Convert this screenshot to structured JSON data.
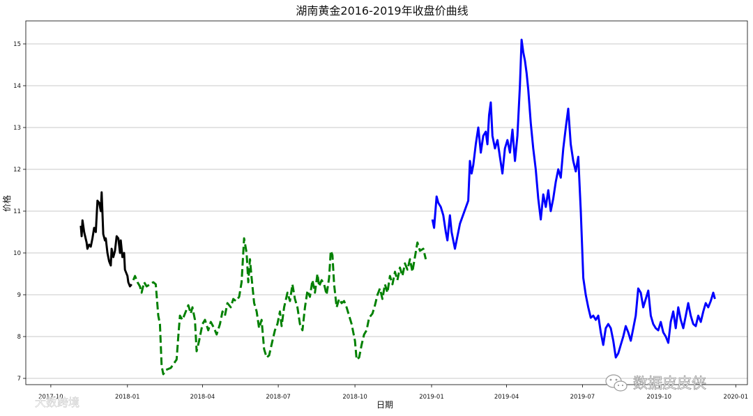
{
  "chart_data": {
    "type": "line",
    "title": "湖南黄金2016-2019年收盘价曲线",
    "xlabel": "日期",
    "ylabel": "价格",
    "ylim": [
      6.85,
      15.55
    ],
    "xlim": [
      "2017-09-01",
      "2020-01-15"
    ],
    "grid": "horizontal",
    "y_ticks": [
      7,
      8,
      9,
      10,
      11,
      12,
      13,
      14,
      15
    ],
    "x_ticks": [
      {
        "date": "2017-10-01",
        "label": "2017-10"
      },
      {
        "date": "2018-01-01",
        "label": "2018-01"
      },
      {
        "date": "2018-04-01",
        "label": "2018-04"
      },
      {
        "date": "2018-07-01",
        "label": "2018-07"
      },
      {
        "date": "2018-10-01",
        "label": "2018-10"
      },
      {
        "date": "2019-01-01",
        "label": "2019-01"
      },
      {
        "date": "2019-04-01",
        "label": "2019-04"
      },
      {
        "date": "2019-07-01",
        "label": "2019-07"
      },
      {
        "date": "2019-10-01",
        "label": "2019-10"
      },
      {
        "date": "2020-01-01",
        "label": "2020-01"
      }
    ],
    "series": [
      {
        "color": "#000000",
        "dash": "solid",
        "points": [
          [
            "2017-11-06",
            10.65
          ],
          [
            "2017-11-07",
            10.4
          ],
          [
            "2017-11-08",
            10.78
          ],
          [
            "2017-11-10",
            10.5
          ],
          [
            "2017-11-13",
            10.25
          ],
          [
            "2017-11-14",
            10.1
          ],
          [
            "2017-11-16",
            10.2
          ],
          [
            "2017-11-18",
            10.15
          ],
          [
            "2017-11-20",
            10.35
          ],
          [
            "2017-11-22",
            10.6
          ],
          [
            "2017-11-24",
            10.5
          ],
          [
            "2017-11-26",
            11.25
          ],
          [
            "2017-11-28",
            11.2
          ],
          [
            "2017-11-30",
            11.0
          ],
          [
            "2017-12-01",
            11.45
          ],
          [
            "2017-12-03",
            10.45
          ],
          [
            "2017-12-05",
            10.3
          ],
          [
            "2017-12-06",
            10.35
          ],
          [
            "2017-12-08",
            10.0
          ],
          [
            "2017-12-10",
            9.8
          ],
          [
            "2017-12-12",
            9.7
          ],
          [
            "2017-12-13",
            10.1
          ],
          [
            "2017-12-15",
            9.9
          ],
          [
            "2017-12-17",
            10.05
          ],
          [
            "2017-12-19",
            10.4
          ],
          [
            "2017-12-21",
            10.35
          ],
          [
            "2017-12-23",
            10.0
          ],
          [
            "2017-12-24",
            10.3
          ],
          [
            "2017-12-26",
            9.9
          ],
          [
            "2017-12-28",
            10.0
          ],
          [
            "2017-12-29",
            9.6
          ],
          [
            "2018-01-01",
            9.45
          ],
          [
            "2018-01-02",
            9.3
          ],
          [
            "2018-01-04",
            9.2
          ],
          [
            "2018-01-06",
            9.25
          ]
        ]
      },
      {
        "color": "#008000",
        "dash": "dashed",
        "points": [
          [
            "2018-01-08",
            9.35
          ],
          [
            "2018-01-10",
            9.45
          ],
          [
            "2018-01-13",
            9.3
          ],
          [
            "2018-01-16",
            9.2
          ],
          [
            "2018-01-18",
            9.05
          ],
          [
            "2018-01-21",
            9.3
          ],
          [
            "2018-01-24",
            9.2
          ],
          [
            "2018-01-28",
            9.25
          ],
          [
            "2018-02-01",
            9.3
          ],
          [
            "2018-02-04",
            9.25
          ],
          [
            "2018-02-07",
            8.5
          ],
          [
            "2018-02-09",
            8.3
          ],
          [
            "2018-02-11",
            7.3
          ],
          [
            "2018-02-13",
            7.1
          ],
          [
            "2018-02-16",
            7.2
          ],
          [
            "2018-02-22",
            7.25
          ],
          [
            "2018-03-01",
            7.45
          ],
          [
            "2018-03-03",
            8.0
          ],
          [
            "2018-03-05",
            8.5
          ],
          [
            "2018-03-08",
            8.4
          ],
          [
            "2018-03-12",
            8.6
          ],
          [
            "2018-03-15",
            8.75
          ],
          [
            "2018-03-18",
            8.55
          ],
          [
            "2018-03-20",
            8.7
          ],
          [
            "2018-03-23",
            8.4
          ],
          [
            "2018-03-25",
            7.65
          ],
          [
            "2018-03-28",
            7.9
          ],
          [
            "2018-04-01",
            8.3
          ],
          [
            "2018-04-04",
            8.4
          ],
          [
            "2018-04-08",
            8.15
          ],
          [
            "2018-04-11",
            8.35
          ],
          [
            "2018-04-15",
            8.2
          ],
          [
            "2018-04-18",
            8.05
          ],
          [
            "2018-04-22",
            8.3
          ],
          [
            "2018-04-25",
            8.6
          ],
          [
            "2018-04-28",
            8.5
          ],
          [
            "2018-05-01",
            8.8
          ],
          [
            "2018-05-05",
            8.7
          ],
          [
            "2018-05-08",
            8.9
          ],
          [
            "2018-05-11",
            8.85
          ],
          [
            "2018-05-15",
            8.95
          ],
          [
            "2018-05-18",
            9.3
          ],
          [
            "2018-05-21",
            10.35
          ],
          [
            "2018-05-24",
            10.0
          ],
          [
            "2018-05-26",
            9.3
          ],
          [
            "2018-05-28",
            9.85
          ],
          [
            "2018-05-30",
            9.4
          ],
          [
            "2018-06-02",
            8.8
          ],
          [
            "2018-06-05",
            8.6
          ],
          [
            "2018-06-08",
            8.2
          ],
          [
            "2018-06-11",
            8.4
          ],
          [
            "2018-06-14",
            7.7
          ],
          [
            "2018-06-17",
            7.5
          ],
          [
            "2018-06-20",
            7.55
          ],
          [
            "2018-06-24",
            7.9
          ],
          [
            "2018-06-27",
            8.15
          ],
          [
            "2018-06-30",
            8.3
          ],
          [
            "2018-07-03",
            8.6
          ],
          [
            "2018-07-05",
            8.25
          ],
          [
            "2018-07-08",
            8.7
          ],
          [
            "2018-07-12",
            9.05
          ],
          [
            "2018-07-15",
            8.85
          ],
          [
            "2018-07-18",
            9.25
          ],
          [
            "2018-07-21",
            8.9
          ],
          [
            "2018-07-24",
            8.7
          ],
          [
            "2018-07-27",
            8.3
          ],
          [
            "2018-07-30",
            8.15
          ],
          [
            "2018-08-02",
            8.7
          ],
          [
            "2018-08-05",
            9.1
          ],
          [
            "2018-08-08",
            8.95
          ],
          [
            "2018-08-11",
            9.35
          ],
          [
            "2018-08-14",
            9.05
          ],
          [
            "2018-08-17",
            9.5
          ],
          [
            "2018-08-19",
            9.2
          ],
          [
            "2018-08-22",
            9.35
          ],
          [
            "2018-08-25",
            9.25
          ],
          [
            "2018-08-28",
            9.0
          ],
          [
            "2018-08-31",
            9.4
          ],
          [
            "2018-09-02",
            10.05
          ],
          [
            "2018-09-04",
            9.95
          ],
          [
            "2018-09-06",
            9.25
          ],
          [
            "2018-09-09",
            8.7
          ],
          [
            "2018-09-12",
            8.9
          ],
          [
            "2018-09-15",
            8.8
          ],
          [
            "2018-09-18",
            8.85
          ],
          [
            "2018-09-21",
            8.7
          ],
          [
            "2018-09-24",
            8.5
          ],
          [
            "2018-09-27",
            8.3
          ],
          [
            "2018-10-01",
            7.9
          ],
          [
            "2018-10-03",
            7.45
          ],
          [
            "2018-10-06",
            7.5
          ],
          [
            "2018-10-09",
            7.8
          ],
          [
            "2018-10-12",
            8.05
          ],
          [
            "2018-10-15",
            8.15
          ],
          [
            "2018-10-18",
            8.45
          ],
          [
            "2018-10-22",
            8.55
          ],
          [
            "2018-10-25",
            8.75
          ],
          [
            "2018-10-28",
            9.0
          ],
          [
            "2018-10-31",
            9.15
          ],
          [
            "2018-11-03",
            8.9
          ],
          [
            "2018-11-06",
            9.25
          ],
          [
            "2018-11-09",
            9.05
          ],
          [
            "2018-11-12",
            9.45
          ],
          [
            "2018-11-15",
            9.25
          ],
          [
            "2018-11-18",
            9.55
          ],
          [
            "2018-11-21",
            9.35
          ],
          [
            "2018-11-24",
            9.65
          ],
          [
            "2018-11-27",
            9.45
          ],
          [
            "2018-11-30",
            9.75
          ],
          [
            "2018-12-03",
            9.6
          ],
          [
            "2018-12-06",
            9.85
          ],
          [
            "2018-12-09",
            9.55
          ],
          [
            "2018-12-12",
            9.9
          ],
          [
            "2018-12-15",
            10.25
          ],
          [
            "2018-12-18",
            10.05
          ],
          [
            "2018-12-22",
            10.1
          ],
          [
            "2018-12-25",
            9.85
          ]
        ]
      },
      {
        "color": "#0000ff",
        "dash": "solid",
        "points": [
          [
            "2019-01-02",
            10.8
          ],
          [
            "2019-01-04",
            10.6
          ],
          [
            "2019-01-07",
            11.35
          ],
          [
            "2019-01-09",
            11.2
          ],
          [
            "2019-01-12",
            11.1
          ],
          [
            "2019-01-15",
            10.9
          ],
          [
            "2019-01-18",
            10.5
          ],
          [
            "2019-01-20",
            10.3
          ],
          [
            "2019-01-23",
            10.9
          ],
          [
            "2019-01-25",
            10.5
          ],
          [
            "2019-01-29",
            10.1
          ],
          [
            "2019-02-01",
            10.4
          ],
          [
            "2019-02-04",
            10.7
          ],
          [
            "2019-02-14",
            11.25
          ],
          [
            "2019-02-16",
            12.2
          ],
          [
            "2019-02-18",
            11.9
          ],
          [
            "2019-02-20",
            12.1
          ],
          [
            "2019-02-23",
            12.6
          ],
          [
            "2019-02-26",
            13.0
          ],
          [
            "2019-03-01",
            12.4
          ],
          [
            "2019-03-04",
            12.8
          ],
          [
            "2019-03-07",
            12.9
          ],
          [
            "2019-03-09",
            12.6
          ],
          [
            "2019-03-11",
            13.3
          ],
          [
            "2019-03-13",
            13.6
          ],
          [
            "2019-03-15",
            12.8
          ],
          [
            "2019-03-18",
            12.5
          ],
          [
            "2019-03-21",
            12.7
          ],
          [
            "2019-03-24",
            12.3
          ],
          [
            "2019-03-27",
            11.9
          ],
          [
            "2019-03-30",
            12.5
          ],
          [
            "2019-04-02",
            12.7
          ],
          [
            "2019-04-05",
            12.4
          ],
          [
            "2019-04-08",
            12.95
          ],
          [
            "2019-04-11",
            12.2
          ],
          [
            "2019-04-14",
            12.8
          ],
          [
            "2019-04-17",
            14.0
          ],
          [
            "2019-04-19",
            15.1
          ],
          [
            "2019-04-21",
            14.8
          ],
          [
            "2019-04-23",
            14.6
          ],
          [
            "2019-04-25",
            14.3
          ],
          [
            "2019-04-27",
            13.9
          ],
          [
            "2019-04-30",
            13.1
          ],
          [
            "2019-05-03",
            12.5
          ],
          [
            "2019-05-06",
            12.0
          ],
          [
            "2019-05-09",
            11.3
          ],
          [
            "2019-05-12",
            10.8
          ],
          [
            "2019-05-15",
            11.4
          ],
          [
            "2019-05-18",
            11.1
          ],
          [
            "2019-05-21",
            11.5
          ],
          [
            "2019-05-24",
            11.0
          ],
          [
            "2019-05-27",
            11.3
          ],
          [
            "2019-05-30",
            11.7
          ],
          [
            "2019-06-02",
            12.0
          ],
          [
            "2019-06-05",
            11.8
          ],
          [
            "2019-06-08",
            12.5
          ],
          [
            "2019-06-11",
            13.0
          ],
          [
            "2019-06-14",
            13.45
          ],
          [
            "2019-06-17",
            12.6
          ],
          [
            "2019-06-20",
            12.2
          ],
          [
            "2019-06-23",
            11.95
          ],
          [
            "2019-06-26",
            12.3
          ],
          [
            "2019-06-29",
            11.0
          ],
          [
            "2019-07-02",
            9.4
          ],
          [
            "2019-07-05",
            9.0
          ],
          [
            "2019-07-08",
            8.7
          ],
          [
            "2019-07-11",
            8.45
          ],
          [
            "2019-07-14",
            8.5
          ],
          [
            "2019-07-17",
            8.4
          ],
          [
            "2019-07-20",
            8.5
          ],
          [
            "2019-07-23",
            8.1
          ],
          [
            "2019-07-26",
            7.8
          ],
          [
            "2019-07-29",
            8.2
          ],
          [
            "2019-08-01",
            8.3
          ],
          [
            "2019-08-04",
            8.2
          ],
          [
            "2019-08-07",
            7.9
          ],
          [
            "2019-08-10",
            7.5
          ],
          [
            "2019-08-13",
            7.6
          ],
          [
            "2019-08-16",
            7.8
          ],
          [
            "2019-08-19",
            8.0
          ],
          [
            "2019-08-22",
            8.25
          ],
          [
            "2019-08-25",
            8.1
          ],
          [
            "2019-08-28",
            7.9
          ],
          [
            "2019-08-31",
            8.2
          ],
          [
            "2019-09-03",
            8.5
          ],
          [
            "2019-09-06",
            9.15
          ],
          [
            "2019-09-09",
            9.05
          ],
          [
            "2019-09-12",
            8.7
          ],
          [
            "2019-09-15",
            8.9
          ],
          [
            "2019-09-18",
            9.1
          ],
          [
            "2019-09-21",
            8.5
          ],
          [
            "2019-09-24",
            8.3
          ],
          [
            "2019-09-27",
            8.2
          ],
          [
            "2019-09-30",
            8.15
          ],
          [
            "2019-10-03",
            8.35
          ],
          [
            "2019-10-06",
            8.1
          ],
          [
            "2019-10-09",
            8.0
          ],
          [
            "2019-10-12",
            7.85
          ],
          [
            "2019-10-15",
            8.35
          ],
          [
            "2019-10-18",
            8.6
          ],
          [
            "2019-10-21",
            8.2
          ],
          [
            "2019-10-24",
            8.7
          ],
          [
            "2019-10-27",
            8.4
          ],
          [
            "2019-10-30",
            8.2
          ],
          [
            "2019-11-02",
            8.5
          ],
          [
            "2019-11-05",
            8.8
          ],
          [
            "2019-11-08",
            8.5
          ],
          [
            "2019-11-11",
            8.3
          ],
          [
            "2019-11-14",
            8.25
          ],
          [
            "2019-11-17",
            8.5
          ],
          [
            "2019-11-20",
            8.35
          ],
          [
            "2019-11-23",
            8.6
          ],
          [
            "2019-11-26",
            8.8
          ],
          [
            "2019-11-29",
            8.7
          ],
          [
            "2019-12-02",
            8.85
          ],
          [
            "2019-12-05",
            9.05
          ],
          [
            "2019-12-07",
            8.9
          ]
        ]
      }
    ]
  },
  "watermarks": {
    "left": "大数跨境",
    "right": "数据皮皮侠"
  }
}
